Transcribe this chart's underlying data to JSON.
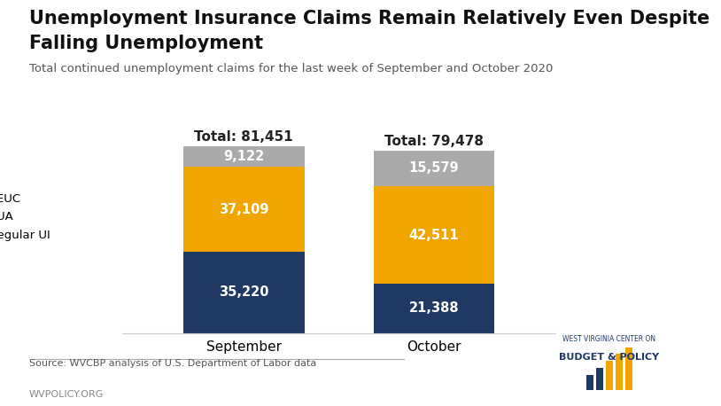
{
  "title_line1": "Unemployment Insurance Claims Remain Relatively Even Despite",
  "title_line2": "Falling Unemployment",
  "subtitle": "Total continued unemployment claims for the last week of September and October 2020",
  "categories": [
    "September",
    "October"
  ],
  "regular_ui": [
    35220,
    21388
  ],
  "pua": [
    37109,
    42511
  ],
  "peuc": [
    9122,
    15579
  ],
  "totals": [
    "Total: 81,451",
    "Total: 79,478"
  ],
  "color_regular_ui": "#1f3864",
  "color_pua": "#f0a500",
  "color_peuc": "#aaaaaa",
  "bar_width": 0.28,
  "xlim": [
    0.0,
    1.0
  ],
  "ylim": [
    0,
    92000
  ],
  "source_text": "Source: WVCBP analysis of U.S. Department of Labor data",
  "footer_text": "WVPOLICY.ORG",
  "label_color": "#ffffff",
  "title_fontsize": 15,
  "subtitle_fontsize": 9.5,
  "label_fontsize": 10.5,
  "tick_fontsize": 11,
  "total_fontsize": 11
}
